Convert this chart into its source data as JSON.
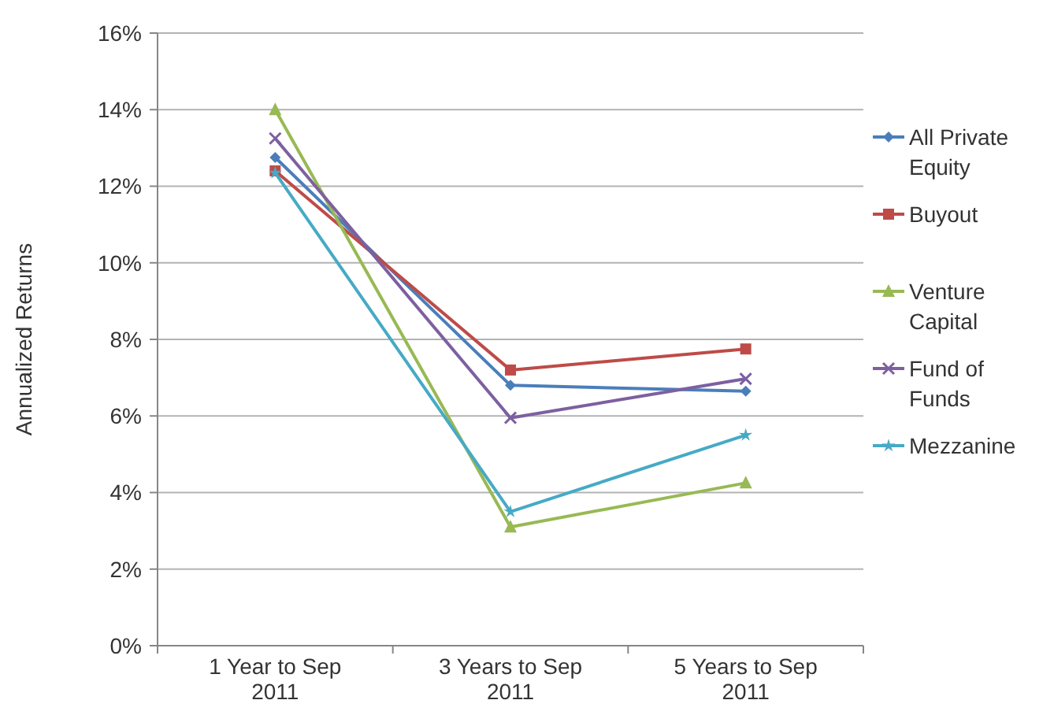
{
  "chart_data": {
    "type": "line",
    "ylabel": "Annualized Returns",
    "categories": [
      "1 Year to Sep 2011",
      "3 Years to Sep 2011",
      "5 Years to Sep 2011"
    ],
    "series": [
      {
        "name": "All Private Equity",
        "color": "#4a7ebb",
        "marker": "diamond",
        "values": [
          12.75,
          6.8,
          6.65
        ]
      },
      {
        "name": "Buyout",
        "color": "#be4b48",
        "marker": "square",
        "values": [
          12.4,
          7.2,
          7.75
        ]
      },
      {
        "name": "Venture Capital",
        "color": "#98b954",
        "marker": "triangle",
        "values": [
          14.0,
          3.1,
          4.25
        ]
      },
      {
        "name": "Fund of Funds",
        "color": "#7d60a0",
        "marker": "cross",
        "values": [
          13.25,
          5.95,
          6.97
        ]
      },
      {
        "name": "Mezzanine",
        "color": "#46aac5",
        "marker": "star",
        "values": [
          12.35,
          3.5,
          5.5
        ]
      }
    ],
    "ylim": [
      0,
      16
    ],
    "yticks": [
      {
        "value": 0,
        "label": "0%"
      },
      {
        "value": 2,
        "label": "2%"
      },
      {
        "value": 4,
        "label": "4%"
      },
      {
        "value": 6,
        "label": "6%"
      },
      {
        "value": 8,
        "label": "8%"
      },
      {
        "value": 10,
        "label": "10%"
      },
      {
        "value": 12,
        "label": "12%"
      },
      {
        "value": 14,
        "label": "14%"
      },
      {
        "value": 16,
        "label": "16%"
      }
    ],
    "grid": "y",
    "legend": "right"
  }
}
